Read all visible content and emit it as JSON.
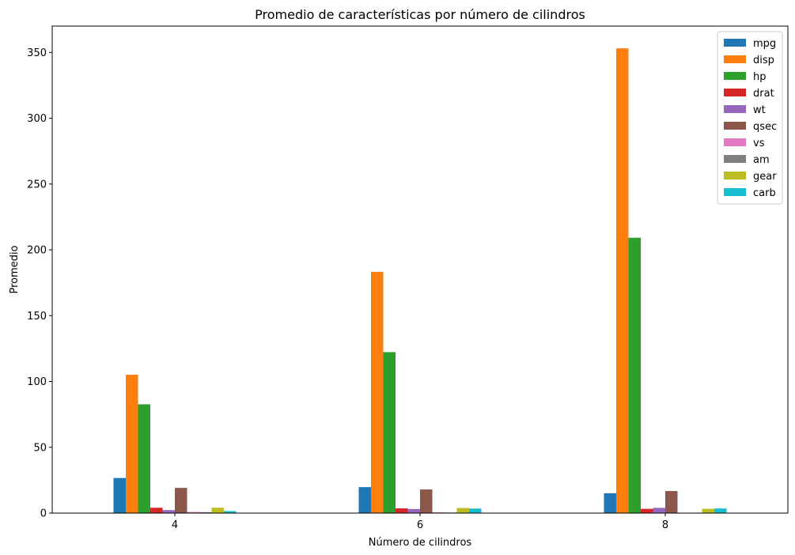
{
  "chart_data": {
    "type": "bar",
    "title": "Promedio de características por número de cilindros",
    "xlabel": "Número de cilindros",
    "ylabel": "Promedio",
    "categories": [
      "4",
      "6",
      "8"
    ],
    "ylim": [
      0,
      370
    ],
    "yticks": [
      0,
      50,
      100,
      150,
      200,
      250,
      300,
      350
    ],
    "grid": false,
    "legend_position": "top-right",
    "series": [
      {
        "name": "mpg",
        "color": "#1f77b4",
        "values": [
          26.66,
          19.74,
          15.1
        ]
      },
      {
        "name": "disp",
        "color": "#ff7f0e",
        "values": [
          105.14,
          183.31,
          353.1
        ]
      },
      {
        "name": "hp",
        "color": "#2ca02c",
        "values": [
          82.64,
          122.29,
          209.21
        ]
      },
      {
        "name": "drat",
        "color": "#d62728",
        "values": [
          4.07,
          3.59,
          3.23
        ]
      },
      {
        "name": "wt",
        "color": "#9467bd",
        "values": [
          2.29,
          3.12,
          4.0
        ]
      },
      {
        "name": "qsec",
        "color": "#8c564b",
        "values": [
          19.14,
          17.98,
          16.77
        ]
      },
      {
        "name": "vs",
        "color": "#e377c2",
        "values": [
          0.91,
          0.57,
          0.0
        ]
      },
      {
        "name": "am",
        "color": "#7f7f7f",
        "values": [
          0.73,
          0.43,
          0.14
        ]
      },
      {
        "name": "gear",
        "color": "#bcbd22",
        "values": [
          4.09,
          3.86,
          3.29
        ]
      },
      {
        "name": "carb",
        "color": "#17becf",
        "values": [
          1.55,
          3.43,
          3.5
        ]
      }
    ]
  }
}
